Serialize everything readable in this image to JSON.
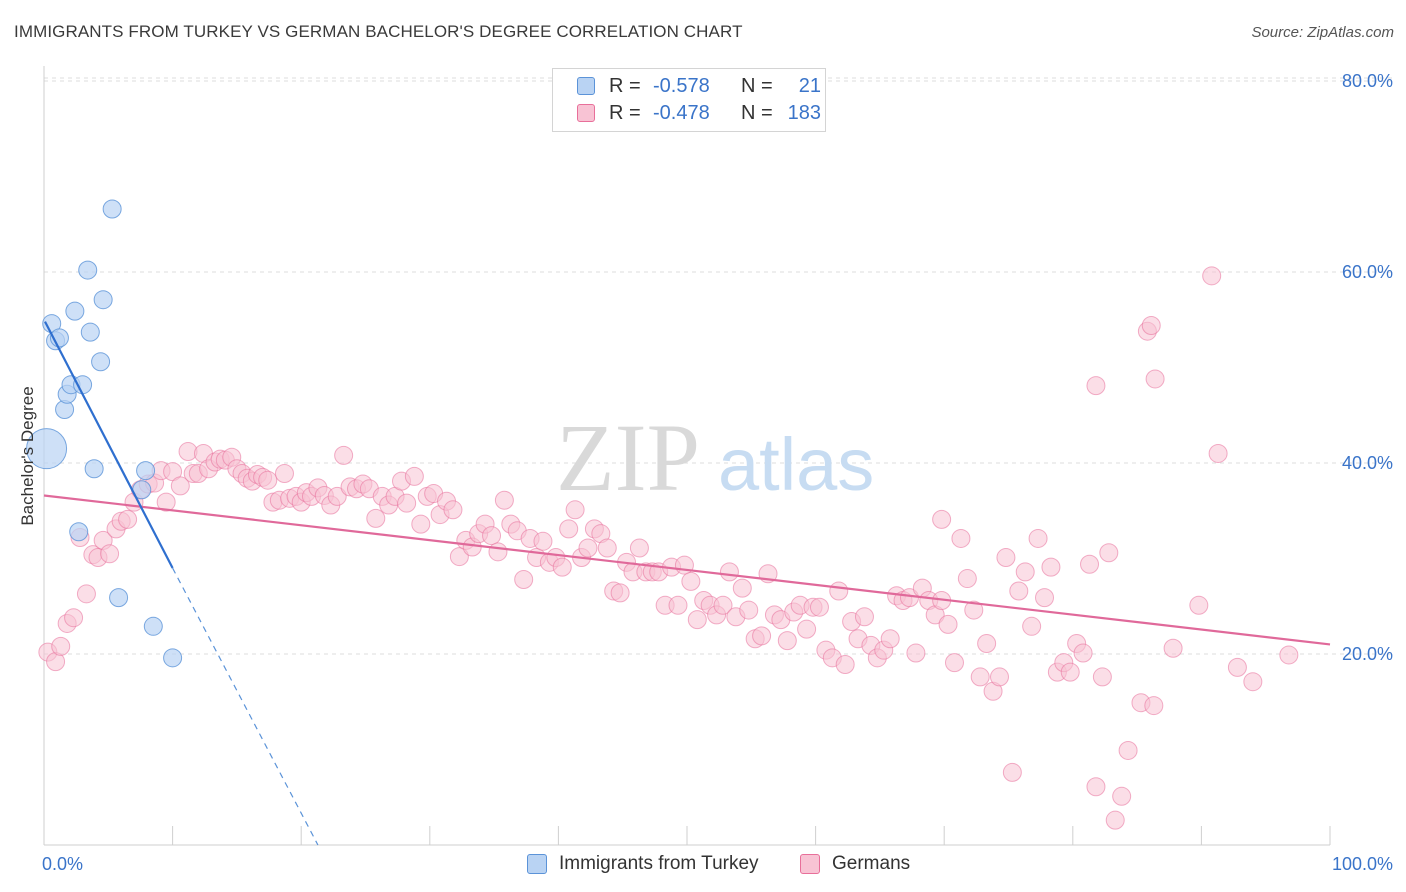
{
  "title": "IMMIGRANTS FROM TURKEY VS GERMAN BACHELOR'S DEGREE CORRELATION CHART",
  "source": "Source: ZipAtlas.com",
  "watermark": {
    "zip": "ZIP",
    "atlas": "atlas"
  },
  "legend": {
    "series1": {
      "r_label": "R =",
      "r_value": "-0.578",
      "n_label": "N =",
      "n_value": "21"
    },
    "series2": {
      "r_label": "R =",
      "r_value": "-0.478",
      "n_label": "N =",
      "n_value": "183"
    }
  },
  "bottom_legend": {
    "series1": "Immigrants from Turkey",
    "series2": "Germans"
  },
  "chart_data": {
    "type": "scatter",
    "title": "IMMIGRANTS FROM TURKEY VS GERMAN BACHELOR'S DEGREE CORRELATION CHART",
    "xlabel": "",
    "ylabel": "Bachelor's Degree",
    "xlim": [
      0,
      100
    ],
    "ylim": [
      0,
      84
    ],
    "x_tick_labels": [
      "0.0%",
      "100.0%"
    ],
    "y_ticks": [
      20,
      40,
      60,
      80
    ],
    "y_tick_labels": [
      "20.0%",
      "40.0%",
      "60.0%",
      "80.0%"
    ],
    "grid": true,
    "colors": {
      "series1": "#5b93d8",
      "series2": "#e86f9a",
      "series1_fill": "#b9d3f3",
      "series2_fill": "#f8c3d4",
      "axis_text": "#3a74c9"
    },
    "series": [
      {
        "name": "Immigrants from Turkey",
        "r": -0.578,
        "n": 21,
        "trend": {
          "x0": 0,
          "y0": 54.8,
          "x1": 10,
          "y1": 29.0,
          "dashed_to_x": 21.3,
          "dashed_to_y": 0
        },
        "points": [
          [
            0.2,
            41.5,
            "big"
          ],
          [
            0.6,
            54.6
          ],
          [
            0.9,
            52.8
          ],
          [
            1.2,
            53.1
          ],
          [
            1.6,
            45.6
          ],
          [
            1.8,
            47.2
          ],
          [
            2.1,
            48.2
          ],
          [
            2.4,
            55.9
          ],
          [
            2.7,
            32.8
          ],
          [
            3.0,
            48.2
          ],
          [
            3.4,
            60.2
          ],
          [
            3.6,
            53.7
          ],
          [
            3.9,
            39.4
          ],
          [
            4.4,
            50.6
          ],
          [
            4.6,
            57.1
          ],
          [
            5.3,
            66.6
          ],
          [
            5.8,
            25.9
          ],
          [
            7.6,
            37.2
          ],
          [
            7.9,
            39.2
          ],
          [
            8.5,
            22.9
          ],
          [
            10.0,
            19.6
          ]
        ]
      },
      {
        "name": "Germans",
        "r": -0.478,
        "n": 183,
        "trend": {
          "x0": 0,
          "y0": 36.6,
          "x1": 100,
          "y1": 21.0
        },
        "points": [
          [
            0.3,
            20.2
          ],
          [
            0.9,
            19.2
          ],
          [
            1.3,
            20.8
          ],
          [
            1.8,
            23.2
          ],
          [
            2.3,
            23.8
          ],
          [
            2.8,
            32.2
          ],
          [
            3.3,
            26.3
          ],
          [
            3.8,
            30.4
          ],
          [
            4.2,
            30.1
          ],
          [
            4.6,
            31.9
          ],
          [
            5.1,
            30.5
          ],
          [
            5.6,
            33.1
          ],
          [
            6.0,
            33.9
          ],
          [
            6.5,
            34.1
          ],
          [
            7.0,
            35.9
          ],
          [
            7.5,
            37.2
          ],
          [
            8.1,
            37.8
          ],
          [
            8.6,
            37.9
          ],
          [
            9.1,
            39.2
          ],
          [
            9.5,
            35.9
          ],
          [
            10.0,
            39.1
          ],
          [
            10.6,
            37.6
          ],
          [
            11.2,
            41.2
          ],
          [
            11.6,
            38.9
          ],
          [
            12.0,
            38.9
          ],
          [
            12.4,
            41.0
          ],
          [
            12.8,
            39.4
          ],
          [
            13.3,
            40.1
          ],
          [
            13.7,
            40.4
          ],
          [
            14.1,
            40.3
          ],
          [
            14.6,
            40.6
          ],
          [
            15.0,
            39.4
          ],
          [
            15.4,
            38.9
          ],
          [
            15.8,
            38.4
          ],
          [
            16.2,
            38.1
          ],
          [
            16.6,
            38.8
          ],
          [
            17.0,
            38.5
          ],
          [
            17.4,
            38.2
          ],
          [
            17.8,
            35.9
          ],
          [
            18.3,
            36.1
          ],
          [
            18.7,
            38.9
          ],
          [
            19.1,
            36.3
          ],
          [
            19.6,
            36.5
          ],
          [
            20.0,
            35.9
          ],
          [
            20.4,
            36.9
          ],
          [
            20.8,
            36.5
          ],
          [
            21.3,
            37.4
          ],
          [
            21.8,
            36.6
          ],
          [
            22.3,
            35.6
          ],
          [
            22.8,
            36.5
          ],
          [
            23.3,
            40.8
          ],
          [
            23.8,
            37.5
          ],
          [
            24.3,
            37.3
          ],
          [
            24.8,
            37.8
          ],
          [
            25.3,
            37.3
          ],
          [
            25.8,
            34.2
          ],
          [
            26.3,
            36.5
          ],
          [
            26.8,
            35.6
          ],
          [
            27.3,
            36.5
          ],
          [
            27.8,
            38.1
          ],
          [
            28.2,
            35.8
          ],
          [
            28.8,
            38.6
          ],
          [
            29.3,
            33.6
          ],
          [
            29.8,
            36.5
          ],
          [
            30.3,
            36.8
          ],
          [
            30.8,
            34.6
          ],
          [
            31.3,
            36.0
          ],
          [
            31.8,
            35.1
          ],
          [
            32.3,
            30.2
          ],
          [
            32.8,
            31.9
          ],
          [
            33.3,
            31.2
          ],
          [
            33.8,
            32.6
          ],
          [
            34.3,
            33.6
          ],
          [
            34.8,
            32.4
          ],
          [
            35.3,
            30.7
          ],
          [
            35.8,
            36.1
          ],
          [
            36.3,
            33.6
          ],
          [
            36.8,
            32.9
          ],
          [
            37.3,
            27.8
          ],
          [
            37.8,
            32.1
          ],
          [
            38.3,
            30.1
          ],
          [
            38.8,
            31.8
          ],
          [
            39.3,
            29.6
          ],
          [
            39.8,
            30.1
          ],
          [
            40.3,
            29.1
          ],
          [
            40.8,
            33.1
          ],
          [
            41.3,
            35.1
          ],
          [
            41.8,
            30.1
          ],
          [
            42.3,
            31.1
          ],
          [
            42.8,
            33.1
          ],
          [
            43.3,
            32.6
          ],
          [
            43.8,
            31.1
          ],
          [
            44.3,
            26.6
          ],
          [
            44.8,
            26.4
          ],
          [
            45.3,
            29.6
          ],
          [
            45.8,
            28.6
          ],
          [
            46.3,
            31.1
          ],
          [
            46.8,
            28.6
          ],
          [
            47.3,
            28.6
          ],
          [
            47.8,
            28.6
          ],
          [
            48.3,
            25.1
          ],
          [
            48.8,
            29.1
          ],
          [
            49.3,
            25.1
          ],
          [
            49.8,
            29.3
          ],
          [
            50.3,
            27.6
          ],
          [
            50.8,
            23.6
          ],
          [
            51.3,
            25.6
          ],
          [
            51.8,
            25.1
          ],
          [
            52.3,
            24.1
          ],
          [
            52.8,
            25.1
          ],
          [
            53.3,
            28.6
          ],
          [
            53.8,
            23.9
          ],
          [
            54.3,
            26.9
          ],
          [
            54.8,
            24.6
          ],
          [
            55.3,
            21.6
          ],
          [
            55.8,
            21.9
          ],
          [
            56.3,
            28.4
          ],
          [
            56.8,
            24.1
          ],
          [
            57.3,
            23.6
          ],
          [
            57.8,
            21.4
          ],
          [
            58.3,
            24.4
          ],
          [
            58.8,
            25.1
          ],
          [
            59.3,
            22.6
          ],
          [
            59.8,
            24.9
          ],
          [
            60.3,
            24.9
          ],
          [
            60.8,
            20.4
          ],
          [
            61.3,
            19.6
          ],
          [
            61.8,
            26.6
          ],
          [
            62.3,
            18.9
          ],
          [
            62.8,
            23.4
          ],
          [
            63.3,
            21.6
          ],
          [
            63.8,
            23.9
          ],
          [
            64.3,
            20.9
          ],
          [
            64.8,
            19.6
          ],
          [
            65.3,
            20.4
          ],
          [
            65.8,
            21.6
          ],
          [
            66.3,
            26.1
          ],
          [
            66.8,
            25.6
          ],
          [
            67.3,
            25.9
          ],
          [
            67.8,
            20.1
          ],
          [
            68.3,
            26.9
          ],
          [
            68.8,
            25.6
          ],
          [
            69.3,
            24.1
          ],
          [
            69.8,
            25.6
          ],
          [
            70.3,
            23.1
          ],
          [
            70.8,
            19.1
          ],
          [
            71.3,
            32.1
          ],
          [
            71.8,
            27.9
          ],
          [
            72.3,
            24.6
          ],
          [
            72.8,
            17.6
          ],
          [
            73.3,
            21.1
          ],
          [
            73.8,
            16.1
          ],
          [
            74.3,
            17.6
          ],
          [
            74.8,
            30.1
          ],
          [
            75.3,
            7.6
          ],
          [
            75.8,
            26.6
          ],
          [
            76.3,
            28.6
          ],
          [
            76.8,
            22.9
          ],
          [
            77.3,
            32.1
          ],
          [
            77.8,
            25.9
          ],
          [
            78.3,
            29.1
          ],
          [
            78.8,
            18.1
          ],
          [
            79.3,
            19.1
          ],
          [
            79.8,
            18.1
          ],
          [
            80.3,
            21.1
          ],
          [
            80.8,
            20.1
          ],
          [
            81.3,
            29.4
          ],
          [
            81.8,
            6.1
          ],
          [
            82.3,
            17.6
          ],
          [
            82.8,
            30.6
          ],
          [
            83.3,
            2.6
          ],
          [
            83.8,
            5.1
          ],
          [
            84.3,
            9.9
          ],
          [
            85.3,
            14.9
          ],
          [
            86.3,
            14.6
          ],
          [
            87.8,
            20.6
          ],
          [
            89.8,
            25.1
          ],
          [
            90.8,
            59.6
          ],
          [
            91.3,
            41.0
          ],
          [
            92.8,
            18.6
          ],
          [
            94.0,
            17.1
          ],
          [
            96.8,
            19.9
          ],
          [
            69.8,
            34.1
          ],
          [
            81.8,
            48.1
          ],
          [
            85.8,
            53.8
          ],
          [
            86.1,
            54.4
          ],
          [
            86.4,
            48.8
          ]
        ]
      }
    ]
  },
  "y_axis_label": "Bachelor's Degree"
}
